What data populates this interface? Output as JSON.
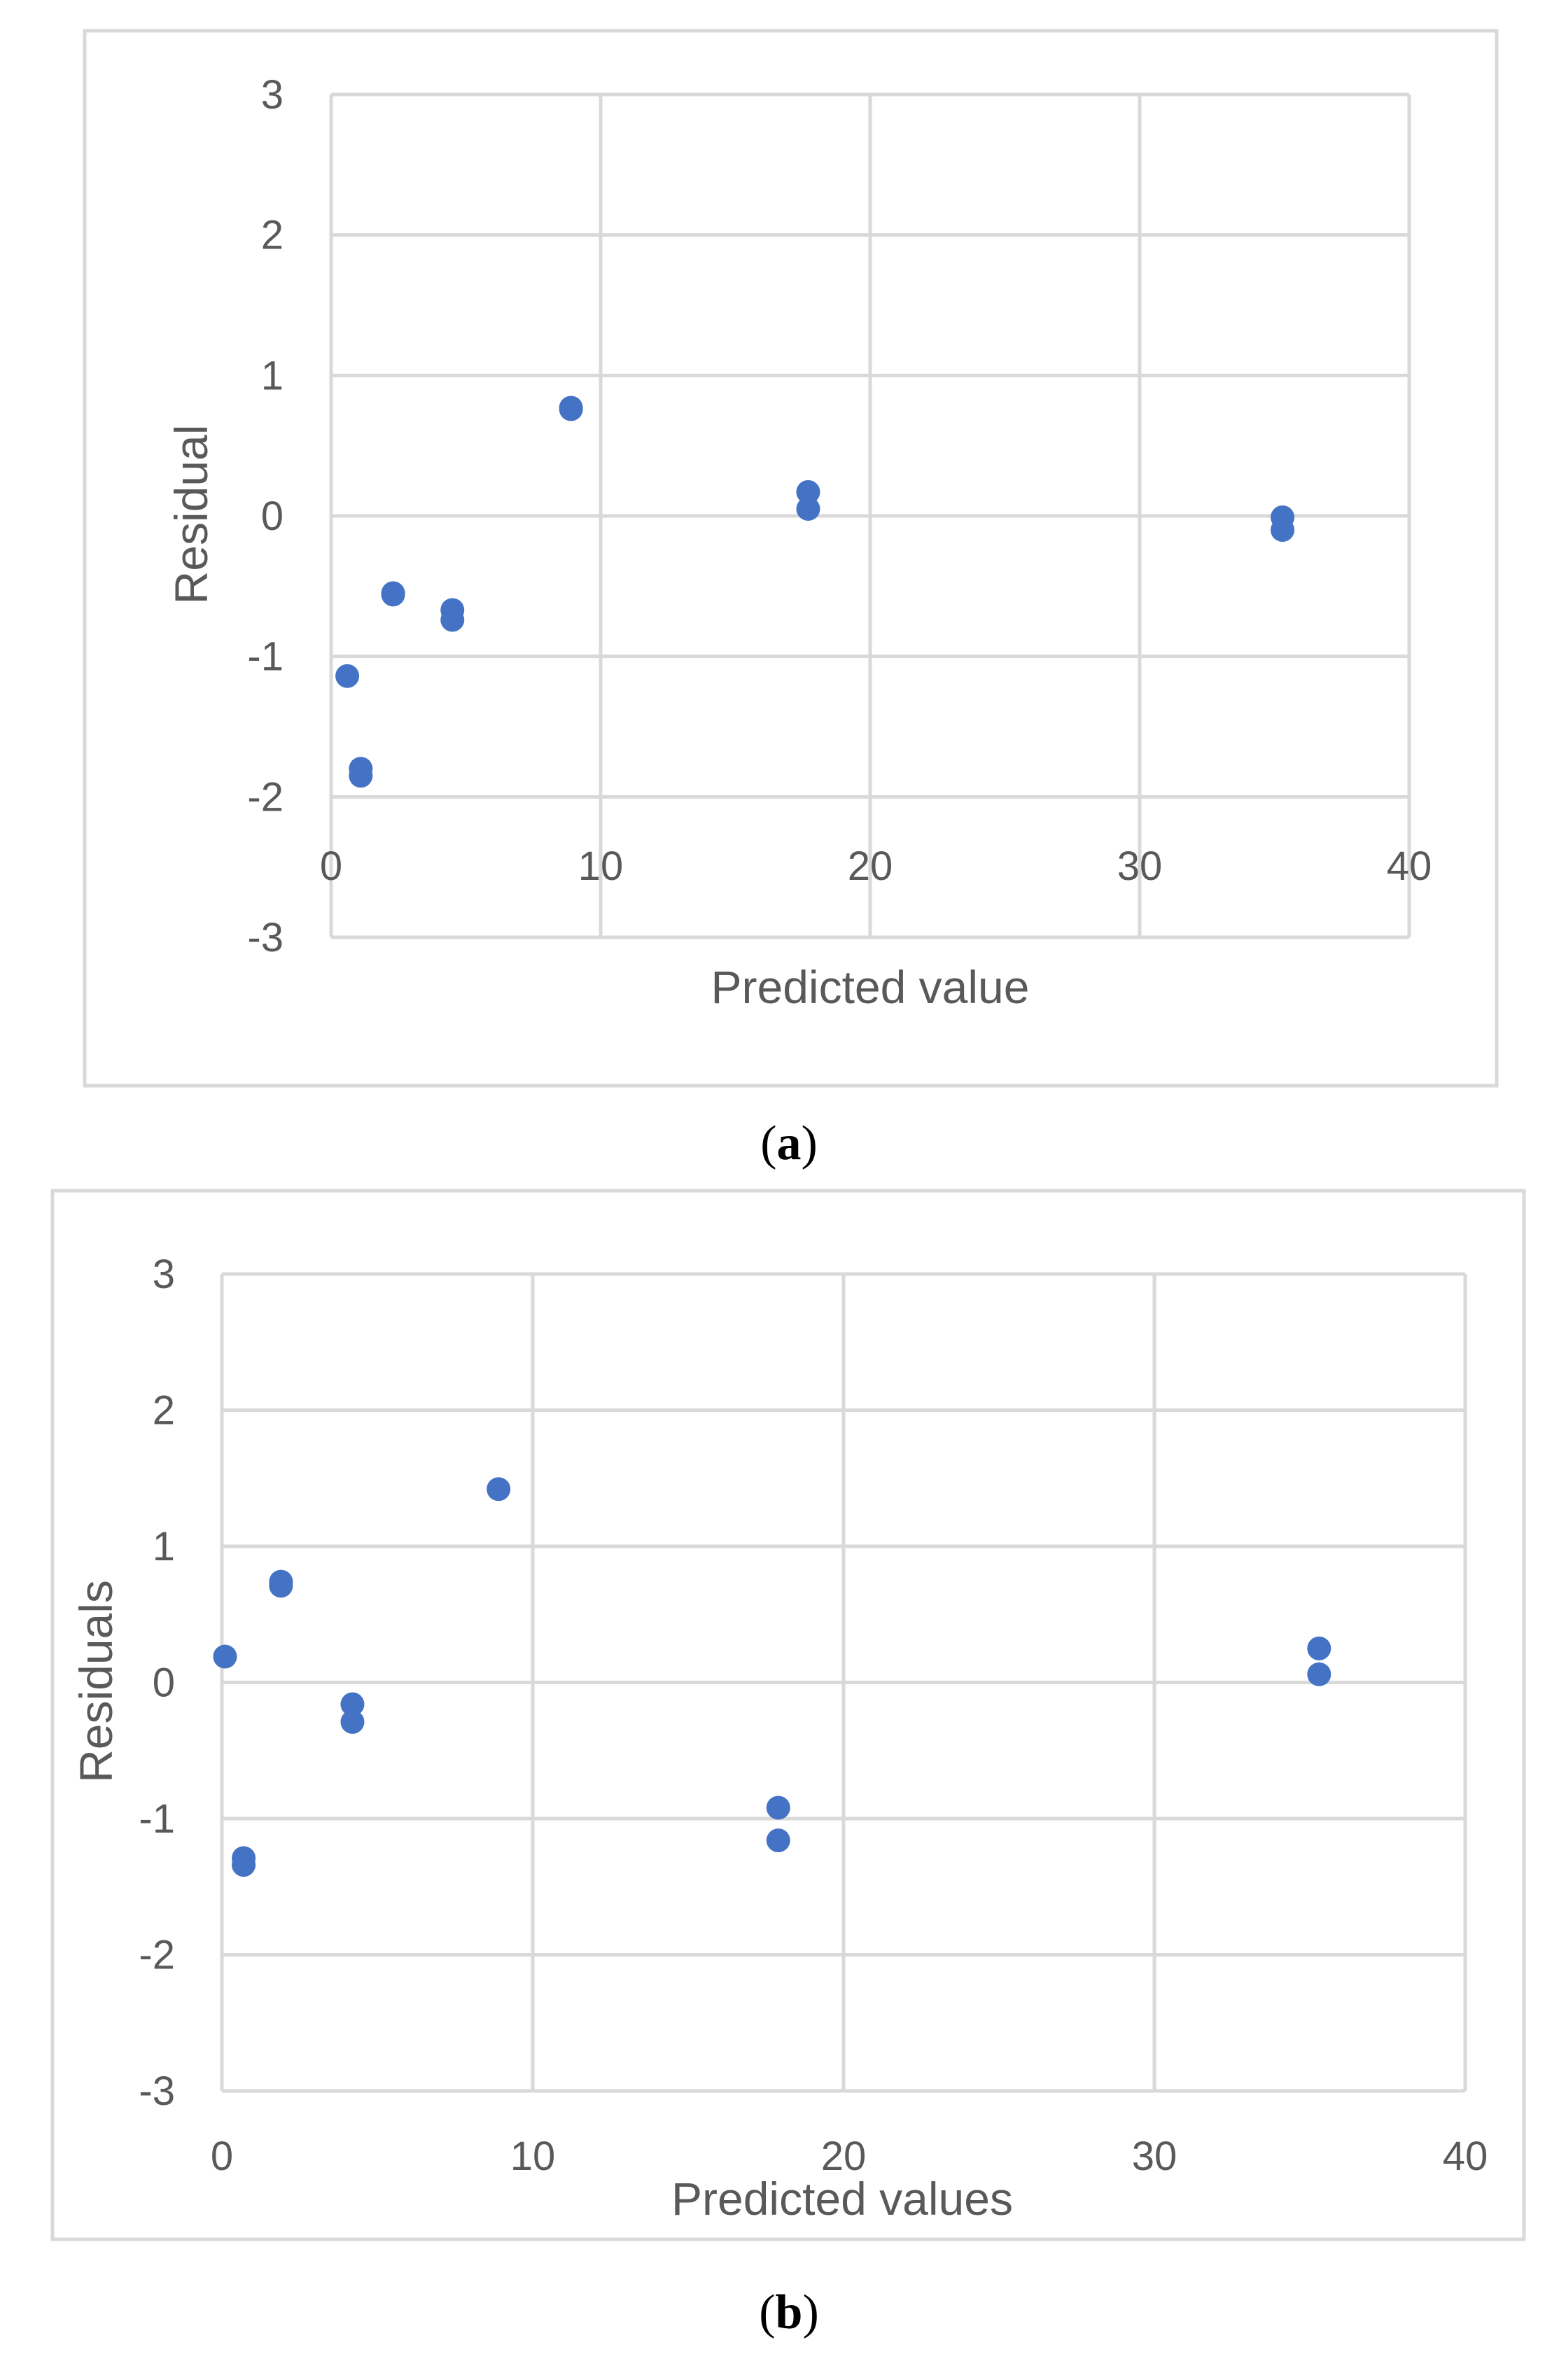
{
  "chart_data": [
    {
      "type": "scatter",
      "panel_label": "a",
      "title": "",
      "xlabel": "Predicted value",
      "ylabel": "Residual",
      "xlim": [
        0,
        40
      ],
      "ylim": [
        -3,
        3
      ],
      "x_ticks": [
        0,
        10,
        20,
        30,
        40
      ],
      "y_ticks": [
        -3,
        -2,
        -1,
        0,
        1,
        2,
        3
      ],
      "grid": true,
      "legend": "none",
      "marker_color": "#4472C4",
      "series": [
        {
          "name": "Residuals",
          "points": [
            {
              "x": 0.6,
              "y": -1.14
            },
            {
              "x": 1.1,
              "y": -1.8
            },
            {
              "x": 1.1,
              "y": -1.85
            },
            {
              "x": 2.3,
              "y": -0.55
            },
            {
              "x": 2.3,
              "y": -0.56
            },
            {
              "x": 4.5,
              "y": -0.67
            },
            {
              "x": 4.5,
              "y": -0.74
            },
            {
              "x": 8.9,
              "y": 0.76
            },
            {
              "x": 8.9,
              "y": 0.77
            },
            {
              "x": 17.7,
              "y": 0.17
            },
            {
              "x": 17.7,
              "y": 0.05
            },
            {
              "x": 35.3,
              "y": -0.01
            },
            {
              "x": 35.3,
              "y": -0.1
            }
          ]
        }
      ]
    },
    {
      "type": "scatter",
      "panel_label": "b",
      "title": "",
      "xlabel": "Predicted values",
      "ylabel": "Residuals",
      "xlim": [
        0,
        40
      ],
      "ylim": [
        -3,
        3
      ],
      "x_ticks": [
        0,
        10,
        20,
        30,
        40
      ],
      "y_ticks": [
        -3,
        -2,
        -1,
        0,
        1,
        2,
        3
      ],
      "grid": true,
      "legend": "none",
      "marker_color": "#4472C4",
      "series": [
        {
          "name": "Residuals",
          "points": [
            {
              "x": 0.1,
              "y": 0.19
            },
            {
              "x": 0.7,
              "y": -1.29
            },
            {
              "x": 0.7,
              "y": -1.34
            },
            {
              "x": 1.9,
              "y": 0.74
            },
            {
              "x": 1.9,
              "y": 0.71
            },
            {
              "x": 4.2,
              "y": -0.16
            },
            {
              "x": 4.2,
              "y": -0.29
            },
            {
              "x": 8.9,
              "y": 1.42
            },
            {
              "x": 17.9,
              "y": -0.92
            },
            {
              "x": 17.9,
              "y": -1.16
            },
            {
              "x": 35.3,
              "y": 0.25
            },
            {
              "x": 35.3,
              "y": 0.06
            }
          ]
        }
      ]
    }
  ],
  "captions": [
    {
      "open": "(",
      "letter": "a",
      "close": ")"
    },
    {
      "open": "(",
      "letter": "b",
      "close": ")"
    }
  ],
  "colors": {
    "frame": "#D9D9D9",
    "gridline": "#D9D9D9",
    "axis_text": "#595959",
    "marker": "#4472C4"
  }
}
